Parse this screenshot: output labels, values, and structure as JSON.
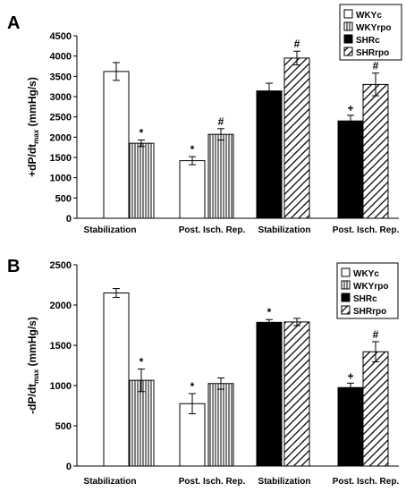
{
  "chart_data": [
    {
      "panel": "A",
      "type": "bar",
      "ylabel_main": "+dP/dt",
      "ylabel_sub": "max",
      "ylabel_unit": " (mmHg/s)",
      "ylim": [
        0,
        4500
      ],
      "yticks": [
        0,
        500,
        1000,
        1500,
        2000,
        2500,
        3000,
        3500,
        4000,
        4500
      ],
      "grid": false,
      "legend_position": "top-right",
      "legend": [
        "WKYc",
        "WKYrpo",
        "SHRc",
        "SHRrpo"
      ],
      "groups": [
        {
          "label": "Stabilization",
          "bars": [
            {
              "series": "WKYc",
              "value": 3620,
              "error": 220,
              "mark": ""
            },
            {
              "series": "WKYrpo",
              "value": 1850,
              "error": 80,
              "mark": "*"
            }
          ]
        },
        {
          "label": "Post. Isch. Rep.",
          "bars": [
            {
              "series": "WKYc",
              "value": 1420,
              "error": 100,
              "mark": "*"
            },
            {
              "series": "WKYrpo",
              "value": 2070,
              "error": 140,
              "mark": "#"
            }
          ]
        },
        {
          "label": "Stabilization",
          "bars": [
            {
              "series": "SHRc",
              "value": 3140,
              "error": 190,
              "mark": ""
            },
            {
              "series": "SHRrpo",
              "value": 3950,
              "error": 170,
              "mark": "#"
            }
          ]
        },
        {
          "label": "Post. Isch. Rep.",
          "bars": [
            {
              "series": "SHRc",
              "value": 2400,
              "error": 140,
              "mark": "+"
            },
            {
              "series": "SHRrpo",
              "value": 3300,
              "error": 280,
              "mark": "#"
            }
          ]
        }
      ]
    },
    {
      "panel": "B",
      "type": "bar",
      "ylabel_main": "-dP/dt",
      "ylabel_sub": "max",
      "ylabel_unit": " (mmHg/s)",
      "ylim": [
        0,
        2500
      ],
      "yticks": [
        0,
        500,
        1000,
        1500,
        2000,
        2500
      ],
      "grid": false,
      "legend_position": "top-right",
      "legend": [
        "WKYc",
        "WKYrpo",
        "SHRc",
        "SHRrpo"
      ],
      "groups": [
        {
          "label": "Stabilization",
          "bars": [
            {
              "series": "WKYc",
              "value": 2150,
              "error": 55,
              "mark": ""
            },
            {
              "series": "WKYrpo",
              "value": 1065,
              "error": 140,
              "mark": "*"
            }
          ]
        },
        {
          "label": "Post. Isch. Rep.",
          "bars": [
            {
              "series": "WKYc",
              "value": 775,
              "error": 125,
              "mark": "*"
            },
            {
              "series": "WKYrpo",
              "value": 1025,
              "error": 70,
              "mark": ""
            }
          ]
        },
        {
          "label": "Stabilization",
          "bars": [
            {
              "series": "SHRc",
              "value": 1785,
              "error": 35,
              "mark": "*"
            },
            {
              "series": "SHRrpo",
              "value": 1790,
              "error": 45,
              "mark": ""
            }
          ]
        },
        {
          "label": "Post. Isch. Rep.",
          "bars": [
            {
              "series": "SHRc",
              "value": 975,
              "error": 55,
              "mark": "+"
            },
            {
              "series": "SHRrpo",
              "value": 1420,
              "error": 125,
              "mark": "#"
            }
          ]
        }
      ]
    }
  ]
}
